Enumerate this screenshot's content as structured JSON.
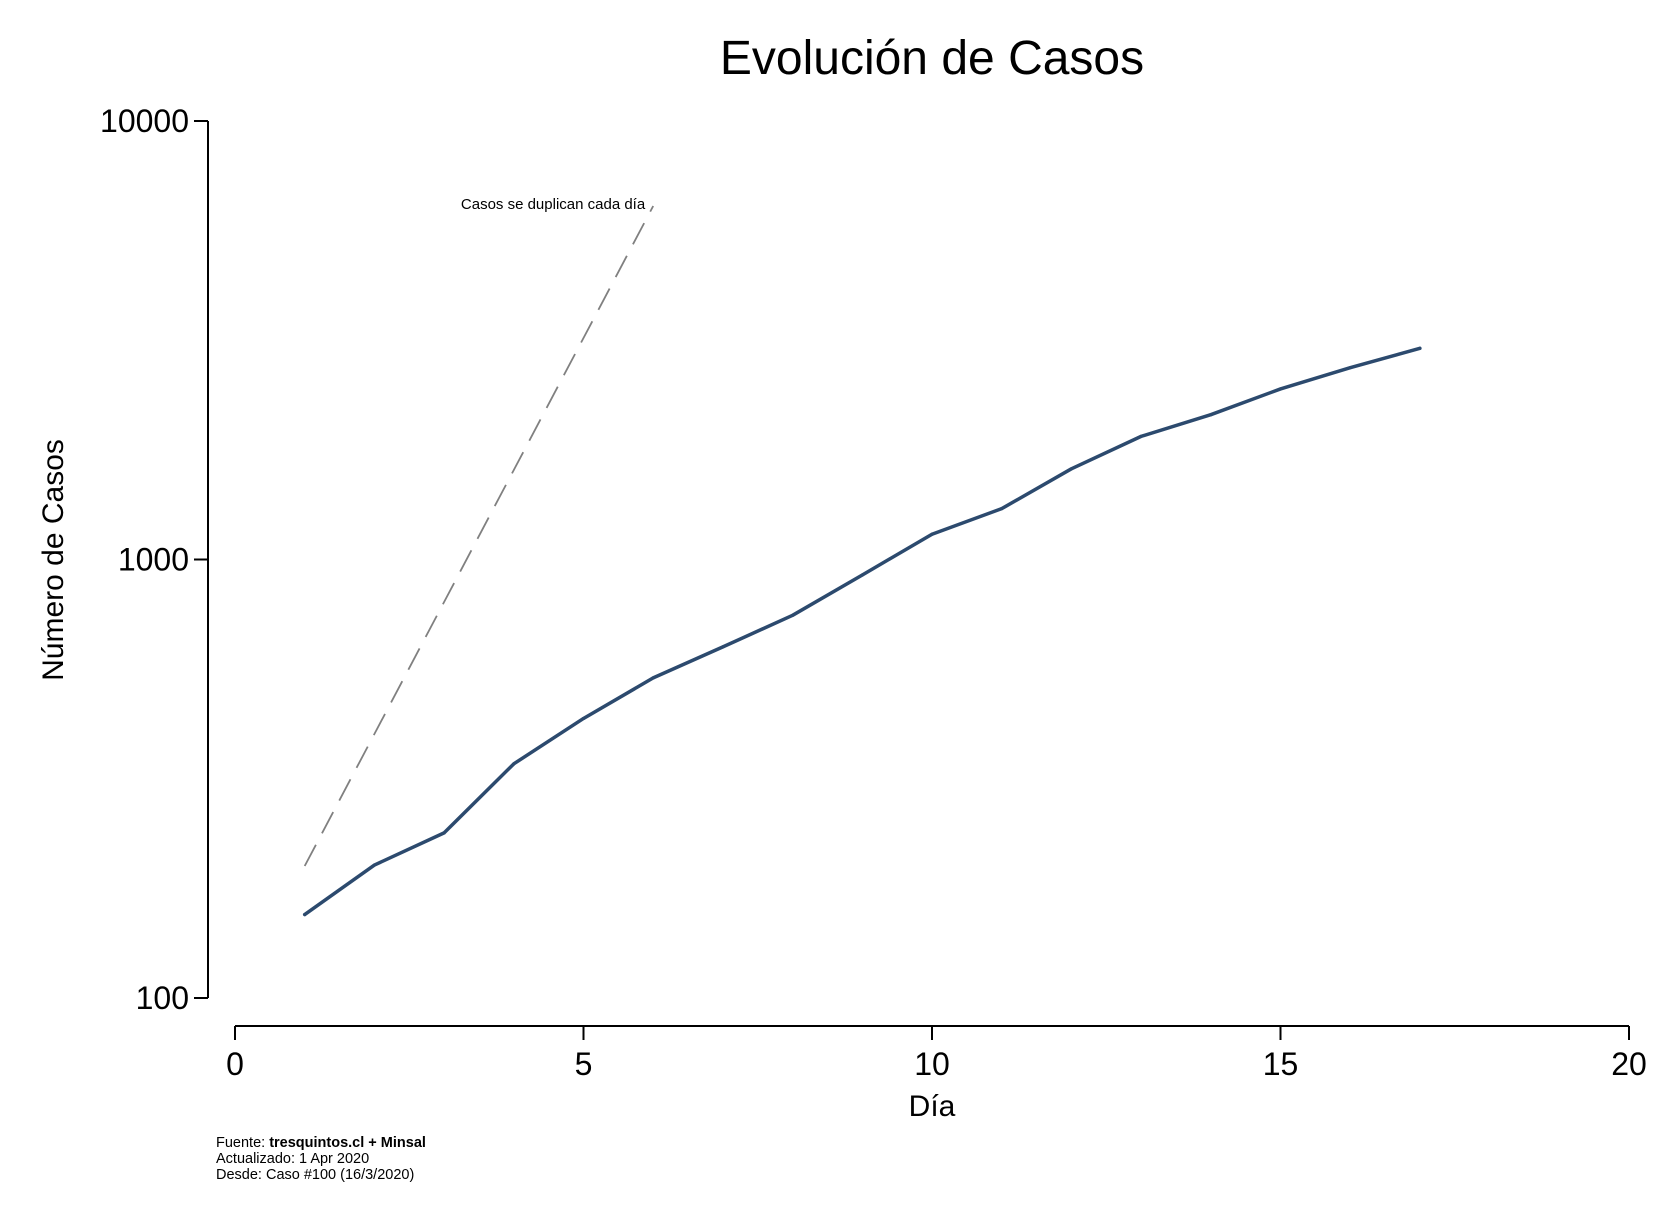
{
  "chart_data": {
    "type": "line",
    "title": "Evolución de Casos",
    "xlabel": "Día",
    "ylabel": "Número de Casos",
    "xlim": [
      0,
      20
    ],
    "ylim": [
      100,
      10000
    ],
    "yscale": "log",
    "grid": false,
    "xticks": [
      0,
      5,
      10,
      15,
      20
    ],
    "xtick_labels": [
      "0",
      "5",
      "10",
      "15",
      "20"
    ],
    "yticks": [
      100,
      1000,
      10000
    ],
    "ytick_labels": [
      "100",
      "1000",
      "10000"
    ],
    "series": [
      {
        "color": "#2c4a6e",
        "x": [
          1,
          2,
          3,
          4,
          5,
          6,
          7,
          8,
          9,
          10,
          11,
          12,
          13,
          14,
          15,
          16,
          17
        ],
        "y": [
          155,
          201,
          238,
          342,
          434,
          537,
          632,
          746,
          922,
          1142,
          1306,
          1610,
          1909,
          2139,
          2449,
          2738,
          3031
        ]
      }
    ],
    "reference_line": {
      "label": "Casos se duplican cada día",
      "style": "dashed",
      "color": "#808080",
      "x": [
        1,
        6
      ],
      "y": [
        200,
        6400
      ]
    }
  },
  "footer": {
    "source_prefix": "Fuente: ",
    "source_bold": "tresquintos.cl + Minsal",
    "updated": "Actualizado: 1 Apr 2020",
    "since": "Desde: Caso #100 (16/3/2020)"
  }
}
